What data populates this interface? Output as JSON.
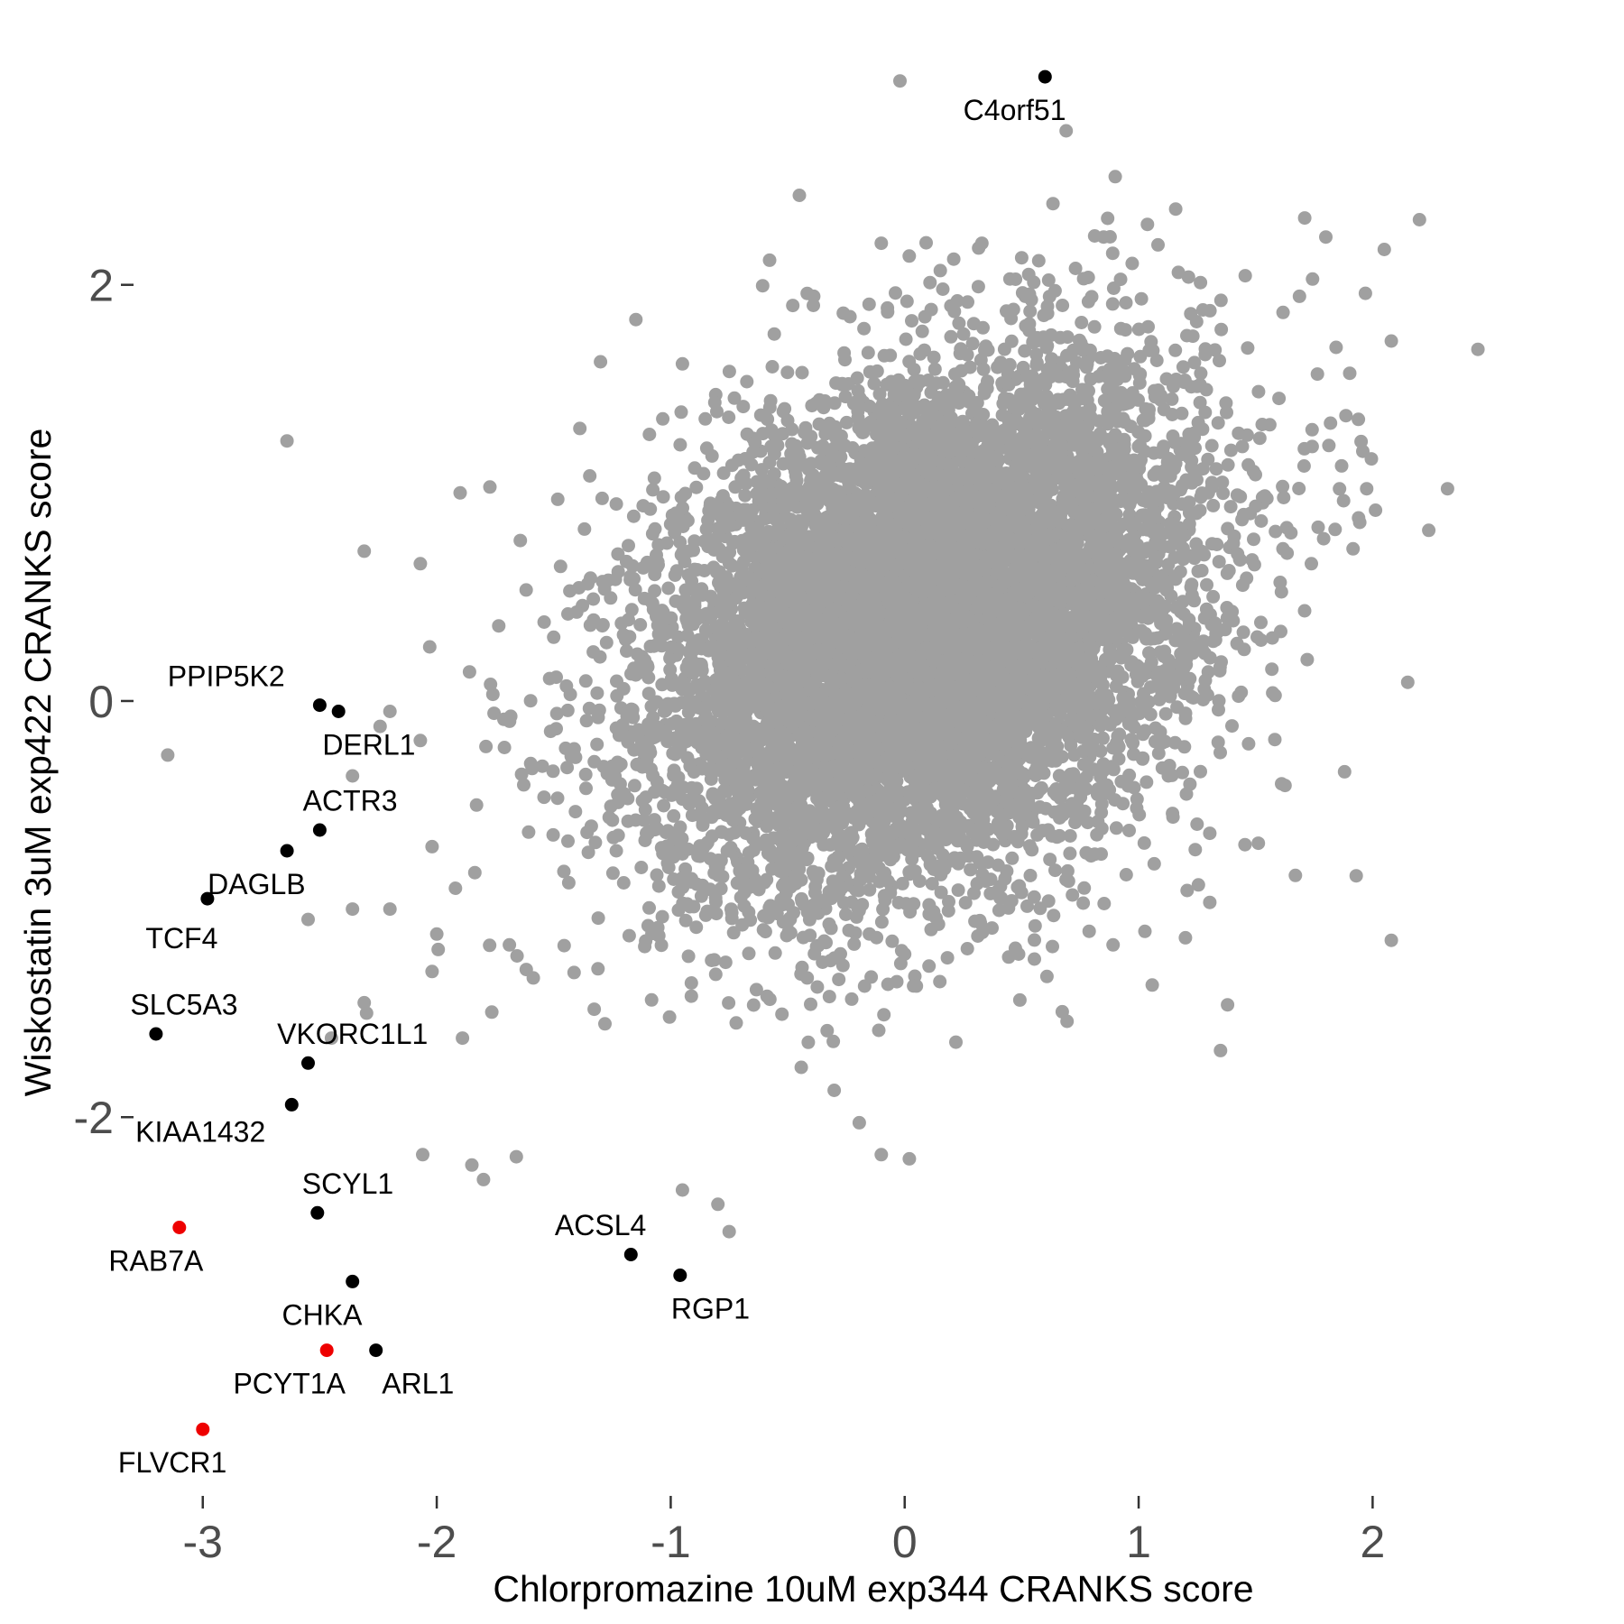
{
  "chart_data": {
    "type": "scatter",
    "title": "",
    "xlabel": "Chlorpromazine 10uM exp344 CRANKS score",
    "ylabel": "Wiskostatin 3uM exp422 CRANKS score",
    "xlim": [
      -3.35,
      2.55
    ],
    "ylim": [
      -3.82,
      3.1
    ],
    "x_ticks": [
      {
        "value": -3,
        "label": "-3"
      },
      {
        "value": -2,
        "label": "-2"
      },
      {
        "value": -1,
        "label": "-1"
      },
      {
        "value": 0,
        "label": "0"
      },
      {
        "value": 1,
        "label": "1"
      },
      {
        "value": 2,
        "label": "2"
      }
    ],
    "y_ticks": [
      {
        "value": 2,
        "label": "2"
      },
      {
        "value": 0,
        "label": "0"
      },
      {
        "value": -2,
        "label": "-2"
      }
    ],
    "grid": false,
    "legend": "none",
    "colors": {
      "background": "#ffffff",
      "background_points": "#a0a0a0",
      "highlight": "#000000",
      "highlight_red": "#ee0000",
      "tick_label": "#4d4d4d",
      "tick_mark": "#333333"
    },
    "background_cloud": {
      "center": [
        0.1,
        0.35
      ],
      "spread": [
        0.58,
        0.62
      ],
      "count": 9000,
      "outliers": [
        [
          -0.02,
          2.98
        ],
        [
          0.69,
          2.74
        ],
        [
          0.9,
          2.52
        ],
        [
          -0.45,
          2.43
        ],
        [
          -0.1,
          2.2
        ],
        [
          0.33,
          2.2
        ],
        [
          0.85,
          2.23
        ],
        [
          1.8,
          2.23
        ],
        [
          2.05,
          2.17
        ],
        [
          1.17,
          2.06
        ],
        [
          0.53,
          2.05
        ],
        [
          2.45,
          1.69
        ],
        [
          2.08,
          1.73
        ],
        [
          -1.3,
          1.63
        ],
        [
          -0.95,
          1.62
        ],
        [
          -2.64,
          1.25
        ],
        [
          -1.9,
          1.0
        ],
        [
          -2.31,
          0.72
        ],
        [
          -2.07,
          0.66
        ],
        [
          -2.03,
          0.26
        ],
        [
          -1.86,
          0.14
        ],
        [
          -1.77,
          0.08
        ],
        [
          -2.2,
          -0.05
        ],
        [
          -2.07,
          -0.19
        ],
        [
          -3.15,
          -0.26
        ],
        [
          -2.36,
          -0.36
        ],
        [
          -1.83,
          -0.5
        ],
        [
          -2.02,
          -0.7
        ],
        [
          -1.92,
          -0.9
        ],
        [
          -2.55,
          -1.05
        ],
        [
          -2.36,
          -1.0
        ],
        [
          -2.2,
          -1.0
        ],
        [
          -2.0,
          -1.12
        ],
        [
          -2.02,
          -1.3
        ],
        [
          -2.31,
          -1.45
        ],
        [
          -2.3,
          -1.5
        ],
        [
          -1.89,
          -1.62
        ],
        [
          -2.45,
          -1.62
        ],
        [
          -2.06,
          -2.18
        ],
        [
          -1.85,
          -2.23
        ],
        [
          -1.66,
          -2.19
        ],
        [
          -1.8,
          -2.3
        ],
        [
          -0.95,
          -2.35
        ],
        [
          -0.75,
          -2.55
        ],
        [
          -0.1,
          -2.18
        ],
        [
          0.02,
          -2.2
        ],
        [
          1.35,
          -1.68
        ],
        [
          1.38,
          -1.46
        ],
        [
          1.93,
          -0.84
        ],
        [
          2.08,
          -1.15
        ],
        [
          2.15,
          0.09
        ],
        [
          2.32,
          1.02
        ],
        [
          2.24,
          0.82
        ],
        [
          1.88,
          -0.34
        ],
        [
          1.94,
          0.88
        ]
      ]
    },
    "points": [
      {
        "label": "C4orf51",
        "x": 0.6,
        "y": 3.0,
        "color": "black",
        "label_dx": -0.13,
        "label_dy": -0.16
      },
      {
        "label": "PPIP5K2",
        "x": -2.5,
        "y": -0.02,
        "color": "black",
        "label_dx": -0.4,
        "label_dy": 0.14
      },
      {
        "label": "DERL1",
        "x": -2.42,
        "y": -0.05,
        "color": "black",
        "label_dx": 0.13,
        "label_dy": -0.16
      },
      {
        "label": "ACTR3",
        "x": -2.5,
        "y": -0.62,
        "color": "black",
        "label_dx": 0.13,
        "label_dy": 0.14
      },
      {
        "label": "DAGLB",
        "x": -2.64,
        "y": -0.72,
        "color": "black",
        "label_dx": -0.13,
        "label_dy": -0.16
      },
      {
        "label": "TCF4",
        "x": -2.98,
        "y": -0.95,
        "color": "black",
        "label_dx": -0.11,
        "label_dy": -0.19
      },
      {
        "label": "SLC5A3",
        "x": -3.2,
        "y": -1.6,
        "color": "black",
        "label_dx": 0.12,
        "label_dy": 0.14
      },
      {
        "label": "VKORC1L1",
        "x": -2.55,
        "y": -1.74,
        "color": "black",
        "label_dx": 0.19,
        "label_dy": 0.14
      },
      {
        "label": "KIAA1432",
        "x": -2.62,
        "y": -1.94,
        "color": "black",
        "label_dx": -0.39,
        "label_dy": -0.13
      },
      {
        "label": "SCYL1",
        "x": -2.51,
        "y": -2.46,
        "color": "black",
        "label_dx": 0.13,
        "label_dy": 0.14
      },
      {
        "label": "RAB7A",
        "x": -3.1,
        "y": -2.53,
        "color": "red",
        "label_dx": -0.1,
        "label_dy": -0.16
      },
      {
        "label": "ACSL4",
        "x": -1.17,
        "y": -2.66,
        "color": "black",
        "label_dx": -0.13,
        "label_dy": 0.14
      },
      {
        "label": "RGP1",
        "x": -0.96,
        "y": -2.76,
        "color": "black",
        "label_dx": 0.13,
        "label_dy": -0.16
      },
      {
        "label": "CHKA",
        "x": -2.36,
        "y": -2.79,
        "color": "black",
        "label_dx": -0.13,
        "label_dy": -0.16
      },
      {
        "label": "PCYT1A",
        "x": -2.47,
        "y": -3.12,
        "color": "red",
        "label_dx": -0.16,
        "label_dy": -0.16
      },
      {
        "label": "ARL1",
        "x": -2.26,
        "y": -3.12,
        "color": "black",
        "label_dx": 0.18,
        "label_dy": -0.16
      },
      {
        "label": "FLVCR1",
        "x": -3.0,
        "y": -3.5,
        "color": "red",
        "label_dx": -0.13,
        "label_dy": -0.16
      }
    ]
  }
}
